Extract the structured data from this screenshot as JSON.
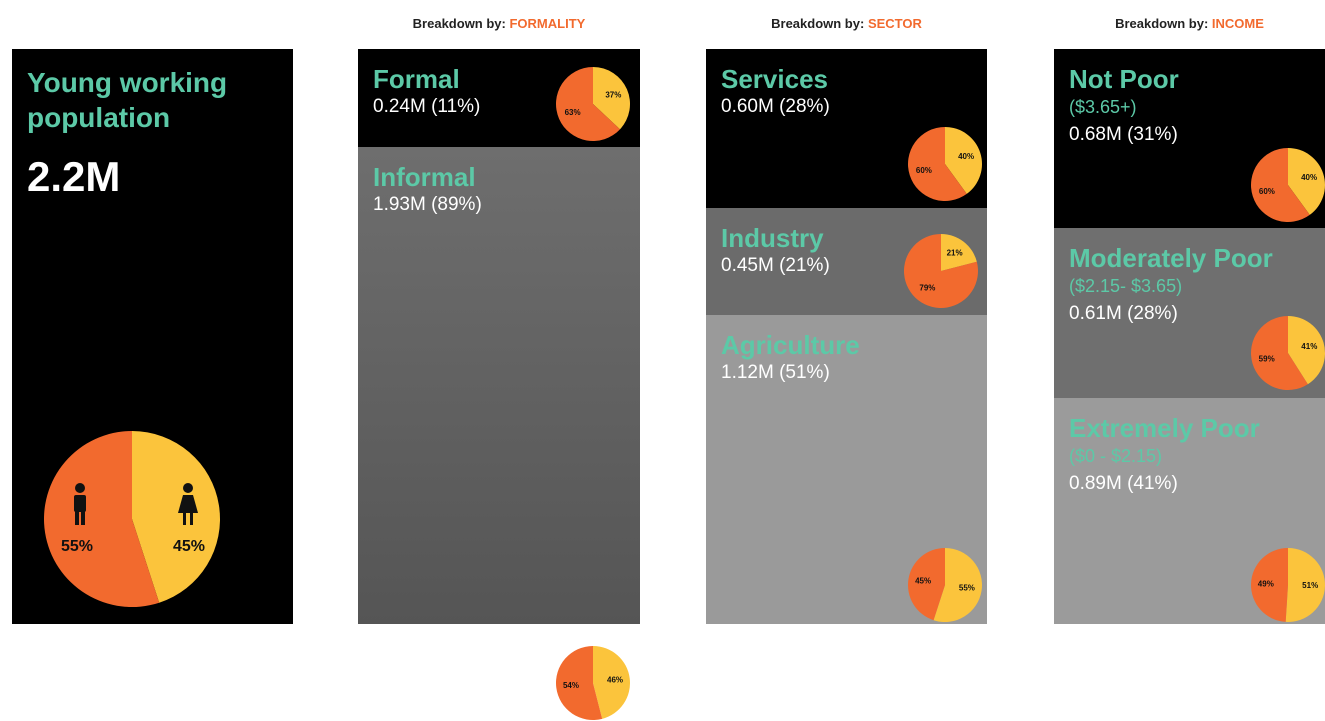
{
  "summary": {
    "title": "Young working population",
    "total": "2.2M",
    "pie": {
      "values": [
        55,
        45
      ],
      "value_labels": [
        "55%",
        "45%"
      ],
      "colors": [
        "#f26a2e",
        "#fbc43c"
      ]
    }
  },
  "panels": [
    {
      "header_prefix": "Breakdown by:",
      "header_key": "FORMALITY",
      "segments": [
        {
          "name": "Formal",
          "value": "0.24M (11%)",
          "pie": {
            "values": [
              63,
              37
            ],
            "value_labels": [
              "63%",
              "37%"
            ]
          }
        },
        {
          "name": "Informal",
          "value": "1.93M (89%)",
          "pie": {
            "values": [
              54,
              46
            ],
            "value_labels": [
              "54%",
              "46%"
            ]
          }
        }
      ]
    },
    {
      "header_prefix": "Breakdown by:",
      "header_key": "SECTOR",
      "segments": [
        {
          "name": "Services",
          "value": "0.60M (28%)",
          "pie": {
            "values": [
              60,
              40
            ],
            "value_labels": [
              "60%",
              "40%"
            ]
          }
        },
        {
          "name": "Industry",
          "value": "0.45M (21%)",
          "pie": {
            "values": [
              79,
              21
            ],
            "value_labels": [
              "79%",
              "21%"
            ]
          }
        },
        {
          "name": "Agriculture",
          "value": "1.12M (51%)",
          "pie": {
            "values": [
              45,
              55
            ],
            "value_labels": [
              "45%",
              "55%"
            ]
          }
        }
      ]
    },
    {
      "header_prefix": "Breakdown by:",
      "header_key": "INCOME",
      "segments": [
        {
          "name": "Not Poor",
          "range": "($3.65+)",
          "value": "0.68M (31%)",
          "pie": {
            "values": [
              60,
              40
            ],
            "value_labels": [
              "60%",
              "40%"
            ]
          }
        },
        {
          "name": "Moderately Poor",
          "range": "($2.15- $3.65)",
          "value": "0.61M (28%)",
          "pie": {
            "values": [
              59,
              41
            ],
            "value_labels": [
              "59%",
              "41%"
            ]
          }
        },
        {
          "name": "Extremely Poor",
          "range": "($0 - $2.15)",
          "value": "0.89M (41%)",
          "pie": {
            "values": [
              49,
              51
            ],
            "value_labels": [
              "49%",
              "51%"
            ]
          }
        }
      ]
    }
  ]
}
